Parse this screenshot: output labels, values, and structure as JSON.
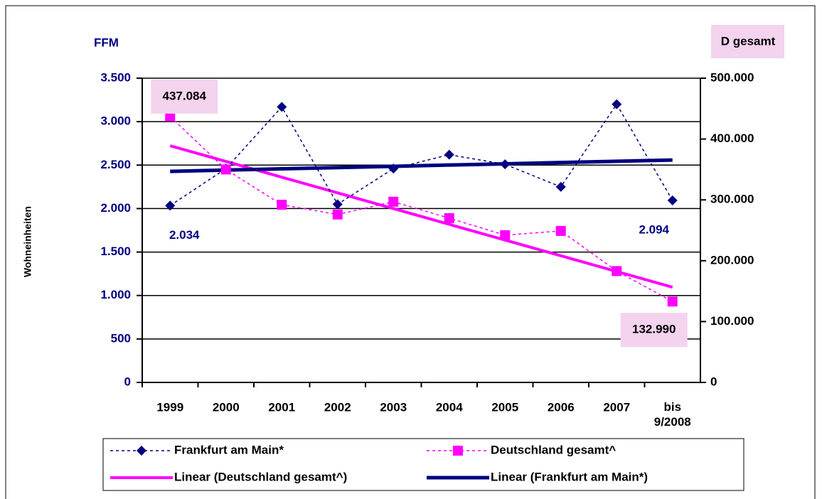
{
  "chart_data": {
    "type": "line",
    "y_axis_title": "FFM",
    "y2_axis_title": "D gesamt",
    "y_label": "Wohneinheiten",
    "categories": [
      "1999",
      "2000",
      "2001",
      "2002",
      "2003",
      "2004",
      "2005",
      "2006",
      "2007",
      "bis 9/2008"
    ],
    "ylim": [
      0,
      3500
    ],
    "yticks": [
      0,
      {
        "value": 500,
        "label": "500"
      },
      {
        "value": 1000,
        "label": "1.000"
      },
      {
        "value": 1500,
        "label": "1.500"
      },
      {
        "value": 2000,
        "label": "2.000"
      },
      {
        "value": 2500,
        "label": "2.500"
      },
      {
        "value": 3000,
        "label": "3.000"
      },
      {
        "value": 3500,
        "label": "3.500"
      }
    ],
    "y2lim": [
      0,
      500000
    ],
    "y2ticks": [
      0,
      {
        "value": 100000,
        "label": "100.000"
      },
      {
        "value": 200000,
        "label": "200.000"
      },
      {
        "value": 300000,
        "label": "300.000"
      },
      {
        "value": 400000,
        "label": "400.000"
      },
      {
        "value": 500000,
        "label": "500.000"
      }
    ],
    "grid": true,
    "series": [
      {
        "name": "Frankfurt am Main*",
        "color": "#000080",
        "marker": "diamond",
        "dash": true,
        "values": [
          2034,
          2460,
          3170,
          2050,
          2460,
          2620,
          2510,
          2250,
          3200,
          2094
        ],
        "value_labels": [
          "2.034",
          null,
          null,
          null,
          null,
          null,
          null,
          null,
          null,
          "2.094"
        ]
      },
      {
        "name": "Deutschland gesamt^",
        "color": "#ff00ff",
        "marker": "square",
        "dash": true,
        "axis": "y2",
        "values": [
          437084,
          350000,
          292000,
          276000,
          297000,
          270000,
          242000,
          249000,
          183000,
          132990
        ],
        "value_labels": [
          "437.084",
          null,
          null,
          null,
          null,
          null,
          null,
          null,
          null,
          "132.990"
        ]
      },
      {
        "name": "Linear (Deutschland gesamt^)",
        "color": "#ff00ff",
        "dash": false,
        "axis": "y2",
        "values": [
          389000,
          363200,
          337300,
          311500,
          285700,
          259800,
          234000,
          208200,
          182300,
          156500
        ]
      },
      {
        "name": "Linear (Frankfurt am Main*)",
        "color": "#000080",
        "dash": false,
        "values": [
          2428,
          2443,
          2457,
          2472,
          2486,
          2501,
          2515,
          2530,
          2544,
          2559
        ]
      }
    ]
  }
}
